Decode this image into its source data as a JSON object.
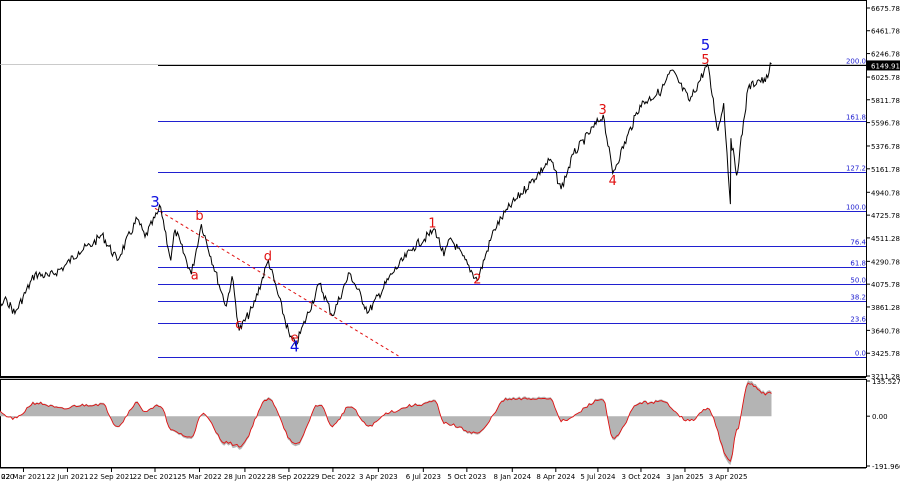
{
  "chart_data": [
    {
      "type": "line",
      "panel": "price",
      "ylim": [
        3211.28,
        6675.78
      ],
      "y_ticks": [
        "6675.78",
        "6461.78",
        "6246.78",
        "6025.78",
        "5811.78",
        "5596.78",
        "5376.78",
        "5161.78",
        "4940.78",
        "4725.78",
        "4511.28",
        "4290.78",
        "4075.78",
        "3861.28",
        "3640.78",
        "3425.78",
        "3211.28"
      ],
      "y_tick_values": [
        6675.78,
        6461.78,
        6246.78,
        6025.78,
        5811.78,
        5596.78,
        5376.78,
        5161.78,
        4940.78,
        4725.78,
        4511.28,
        4290.78,
        4075.78,
        3861.28,
        3640.78,
        3425.78,
        3211.28
      ],
      "last_price": "6149.91",
      "fib_levels": [
        {
          "label": "200.0",
          "value": 6135
        },
        {
          "label": "161.8",
          "value": 5610
        },
        {
          "label": "127.2",
          "value": 5135
        },
        {
          "label": "100.0",
          "value": 4760
        },
        {
          "label": "76.4",
          "value": 4438
        },
        {
          "label": "61.8",
          "value": 4235
        },
        {
          "label": "50.0",
          "value": 4075
        },
        {
          "label": "38.2",
          "value": 3913
        },
        {
          "label": "23.6",
          "value": 3712
        },
        {
          "label": "0.0",
          "value": 3388
        }
      ],
      "wave_labels": [
        {
          "text": "3",
          "color": "#1010e0",
          "x": "22 Dec 2021",
          "y": 4800
        },
        {
          "text": "b",
          "color": "#e01010",
          "x": "25 Mar 2022",
          "y": 4680
        },
        {
          "text": "a",
          "color": "#e01010",
          "x": "15 Mar 2022",
          "y": 4120
        },
        {
          "text": "c",
          "color": "#e01010",
          "x": "15 Jun 2022",
          "y": 3660
        },
        {
          "text": "d",
          "color": "#e01010",
          "x": "15 Aug 2022",
          "y": 4300
        },
        {
          "text": "e",
          "color": "#e01010",
          "x": "10 Oct 2022",
          "y": 3530
        },
        {
          "text": "4",
          "color": "#1010e0",
          "x": "10 Oct 2022",
          "y": 3440
        },
        {
          "text": "1",
          "color": "#e01010",
          "x": "25 Jul 2023",
          "y": 4610
        },
        {
          "text": "2",
          "color": "#e01010",
          "x": "27 Oct 2023",
          "y": 4080
        },
        {
          "text": "3",
          "color": "#e01010",
          "x": "15 Jul 2024",
          "y": 5680
        },
        {
          "text": "4",
          "color": "#e01010",
          "x": "5 Aug 2024",
          "y": 5010
        },
        {
          "text": "5",
          "color": "#e01010",
          "x": "15 Feb 2025",
          "y": 6150
        },
        {
          "text": "5",
          "color": "#1010e0",
          "x": "15 Feb 2025",
          "y": 6280
        }
      ],
      "series": [
        {
          "values": [
            [
              "15 Dec 2020",
              3700
            ],
            [
              "15 Jan 2021",
              3780
            ],
            [
              "15 Feb 2021",
              3930
            ],
            [
              "4 Mar 2021",
              3800
            ],
            [
              "15 Apr 2021",
              4170
            ],
            [
              "15 May 2021",
              4150
            ],
            [
              "15 Jun 2021",
              4240
            ],
            [
              "15 Jul 2021",
              4380
            ],
            [
              "15 Aug 2021",
              4460
            ],
            [
              "2 Sep 2021",
              4540
            ],
            [
              "4 Oct 2021",
              4300
            ],
            [
              "15 Nov 2021",
              4690
            ],
            [
              "1 Dec 2021",
              4520
            ],
            [
              "3 Jan 2022",
              4800
            ],
            [
              "24 Jan 2022",
              4300
            ],
            [
              "2 Feb 2022",
              4590
            ],
            [
              "8 Mar 2022",
              4170
            ],
            [
              "29 Mar 2022",
              4640
            ],
            [
              "10 May 2022",
              4000
            ],
            [
              "20 May 2022",
              3870
            ],
            [
              "1 Jun 2022",
              4150
            ],
            [
              "16 Jun 2022",
              3640
            ],
            [
              "15 Jul 2022",
              3860
            ],
            [
              "16 Aug 2022",
              4300
            ],
            [
              "30 Sep 2022",
              3580
            ],
            [
              "12 Oct 2022",
              3500
            ],
            [
              "1 Dec 2022",
              4080
            ],
            [
              "28 Dec 2022",
              3780
            ],
            [
              "2 Feb 2023",
              4180
            ],
            [
              "13 Mar 2023",
              3810
            ],
            [
              "1 May 2023",
              4170
            ],
            [
              "15 Jun 2023",
              4420
            ],
            [
              "31 Jul 2023",
              4590
            ],
            [
              "18 Aug 2023",
              4340
            ],
            [
              "1 Sep 2023",
              4510
            ],
            [
              "27 Oct 2023",
              4110
            ],
            [
              "1 Dec 2023",
              4590
            ],
            [
              "29 Dec 2023",
              4780
            ],
            [
              "15 Feb 2024",
              5030
            ],
            [
              "28 Mar 2024",
              5250
            ],
            [
              "19 Apr 2024",
              4970
            ],
            [
              "15 May 2024",
              5300
            ],
            [
              "16 Jul 2024",
              5670
            ],
            [
              "5 Aug 2024",
              5120
            ],
            [
              "1 Oct 2024",
              5760
            ],
            [
              "15 Nov 2024",
              5900
            ],
            [
              "6 Dec 2024",
              6090
            ],
            [
              "13 Jan 2025",
              5800
            ],
            [
              "19 Feb 2025",
              6145
            ],
            [
              "13 Mar 2025",
              5520
            ],
            [
              "25 Mar 2025",
              5780
            ],
            [
              "8 Apr 2025",
              4830
            ],
            [
              "9 Apr 2025",
              5450
            ],
            [
              "21 Apr 2025",
              5100
            ],
            [
              "15 May 2025",
              5920
            ],
            [
              "6 Jun 2025",
              6000
            ],
            [
              "20 Jun 2025",
              5980
            ],
            [
              "3 Jul 2025",
              6150
            ]
          ]
        }
      ],
      "trendline": [
        [
          "22 Dec 2021",
          4790
        ],
        [
          "15 May 2023",
          3400
        ]
      ],
      "x_ticks": [
        "22 Mar 2021",
        "22 Jun 2021",
        "22 Sep 2021",
        "22 Dec 2021",
        "25 Mar 2022",
        "28 Jun 2022",
        "28 Sep 2022",
        "29 Dec 2022",
        "3 Apr 2023",
        "6 Jul 2023",
        "5 Oct 2023",
        "8 Jan 2024",
        "8 Apr 2024",
        "5 Jul 2024",
        "3 Oct 2024",
        "3 Jan 2025",
        "3 Apr 2025"
      ],
      "x_tick_dates": [
        "2021-03-22",
        "2021-06-22",
        "2021-09-22",
        "2021-12-22",
        "2022-03-25",
        "2022-06-28",
        "2022-09-28",
        "2022-12-29",
        "2023-04-03",
        "2023-07-06",
        "2023-10-05",
        "2024-01-08",
        "2024-04-08",
        "2024-07-05",
        "2024-10-03",
        "2025-01-03",
        "2025-04-03"
      ],
      "x_first_tick_label": "020"
    },
    {
      "type": "area",
      "panel": "oscillator",
      "ylim": [
        -191.966,
        135.527
      ],
      "y_ticks": [
        "135.527",
        "0.00",
        "-191.966"
      ],
      "y_tick_values": [
        135.527,
        0,
        -191.966
      ],
      "series": [
        {
          "values": [
            [
              "15 Dec 2020",
              40
            ],
            [
              "15 Jan 2021",
              25
            ],
            [
              "4 Mar 2021",
              -10
            ],
            [
              "15 Apr 2021",
              55
            ],
            [
              "15 Jun 2021",
              30
            ],
            [
              "15 Jul 2021",
              45
            ],
            [
              "2 Sep 2021",
              50
            ],
            [
              "4 Oct 2021",
              -40
            ],
            [
              "15 Nov 2021",
              55
            ],
            [
              "1 Dec 2021",
              20
            ],
            [
              "3 Jan 2022",
              45
            ],
            [
              "24 Jan 2022",
              -60
            ],
            [
              "8 Mar 2022",
              -90
            ],
            [
              "29 Mar 2022",
              10
            ],
            [
              "20 May 2022",
              -110
            ],
            [
              "16 Jun 2022",
              -125
            ],
            [
              "16 Aug 2022",
              70
            ],
            [
              "12 Oct 2022",
              -120
            ],
            [
              "1 Dec 2022",
              50
            ],
            [
              "28 Dec 2022",
              -40
            ],
            [
              "2 Feb 2023",
              40
            ],
            [
              "13 Mar 2023",
              -40
            ],
            [
              "1 May 2023",
              20
            ],
            [
              "15 Jun 2023",
              45
            ],
            [
              "31 Jul 2023",
              60
            ],
            [
              "18 Aug 2023",
              -30
            ],
            [
              "27 Oct 2023",
              -70
            ],
            [
              "29 Dec 2023",
              70
            ],
            [
              "28 Mar 2024",
              75
            ],
            [
              "19 Apr 2024",
              -20
            ],
            [
              "16 Jul 2024",
              70
            ],
            [
              "5 Aug 2024",
              -95
            ],
            [
              "1 Oct 2024",
              55
            ],
            [
              "15 Nov 2024",
              60
            ],
            [
              "13 Jan 2025",
              -20
            ],
            [
              "19 Feb 2025",
              30
            ],
            [
              "8 Apr 2025",
              -190
            ],
            [
              "21 Apr 2025",
              -60
            ],
            [
              "15 May 2025",
              135
            ],
            [
              "20 Jun 2025",
              95
            ],
            [
              "3 Jul 2025",
              95
            ]
          ]
        }
      ]
    }
  ]
}
